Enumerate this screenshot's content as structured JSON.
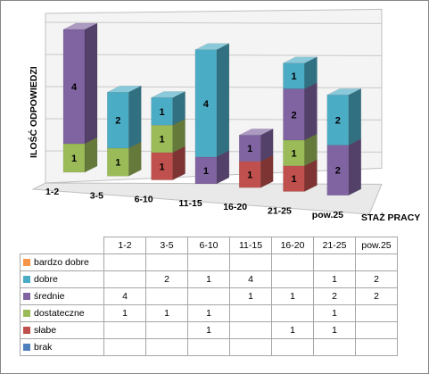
{
  "chart_data": {
    "type": "bar",
    "stacked": true,
    "three_d": true,
    "categories": [
      "1-2",
      "3-5",
      "6-10",
      "11-15",
      "16-20",
      "21-25",
      "pow.25"
    ],
    "xlabel": "STAŻ PRACY",
    "ylabel": "ILOŚĆ ODPOWIEDZI",
    "grid": true,
    "legend": "data-table-below",
    "series": [
      {
        "name": "brak",
        "color": "#4F81BD",
        "values": [
          null,
          null,
          null,
          null,
          null,
          null,
          null
        ]
      },
      {
        "name": "słabe",
        "color": "#C0504D",
        "values": [
          null,
          null,
          1,
          null,
          1,
          1,
          null
        ]
      },
      {
        "name": "dostateczne",
        "color": "#9BBB59",
        "values": [
          1,
          1,
          1,
          null,
          null,
          1,
          null
        ]
      },
      {
        "name": "średnie",
        "color": "#8064A2",
        "values": [
          4,
          null,
          null,
          1,
          1,
          2,
          2
        ]
      },
      {
        "name": "dobre",
        "color": "#4BACC6",
        "values": [
          null,
          2,
          1,
          4,
          null,
          1,
          2
        ]
      },
      {
        "name": "bardzo dobre",
        "color": "#F79646",
        "values": [
          null,
          null,
          null,
          null,
          null,
          null,
          null
        ]
      }
    ]
  },
  "table": {
    "row_order": [
      "bardzo dobre",
      "dobre",
      "średnie",
      "dostateczne",
      "słabe",
      "brak"
    ]
  }
}
